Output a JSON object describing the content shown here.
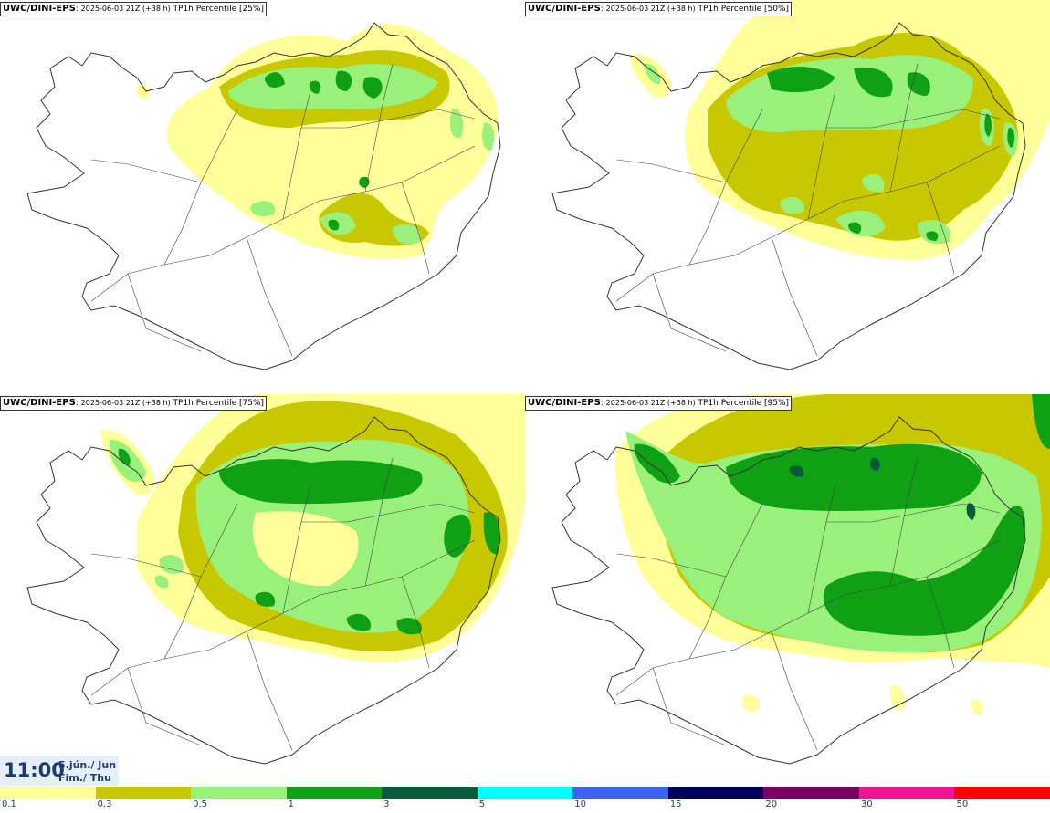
{
  "panels": [
    {
      "model": "UWC/DINI-EPS",
      "run": "2025-06-03 21Z (+38 h)",
      "field": "TP1h Percentile [25%]"
    },
    {
      "model": "UWC/DINI-EPS",
      "run": "2025-06-03 21Z (+38 h)",
      "field": "TP1h Percentile [50%]"
    },
    {
      "model": "UWC/DINI-EPS",
      "run": "2025-06-03 21Z (+38 h)",
      "field": "TP1h Percentile [75%]"
    },
    {
      "model": "UWC/DINI-EPS",
      "run": "2025-06-03 21Z (+38 h)",
      "field": "TP1h Percentile [95%]"
    }
  ],
  "valid_time": {
    "time": "11:00",
    "date_line1": "5.jún./ Jun",
    "date_line2": "Fim./ Thu"
  },
  "colorbar": {
    "colors": [
      "#ffff99",
      "#c8c800",
      "#99f07a",
      "#0fa014",
      "#0a5a3c",
      "#00ffff",
      "#3c64f0",
      "#00005a",
      "#780064",
      "#f01490",
      "#ff0000"
    ],
    "labels": [
      "0.1",
      "0.3",
      "0.5",
      "1",
      "3",
      "5",
      "10",
      "15",
      "20",
      "30",
      "50"
    ]
  },
  "map": {
    "coast_color": "#333333",
    "road_color": "#444444"
  }
}
